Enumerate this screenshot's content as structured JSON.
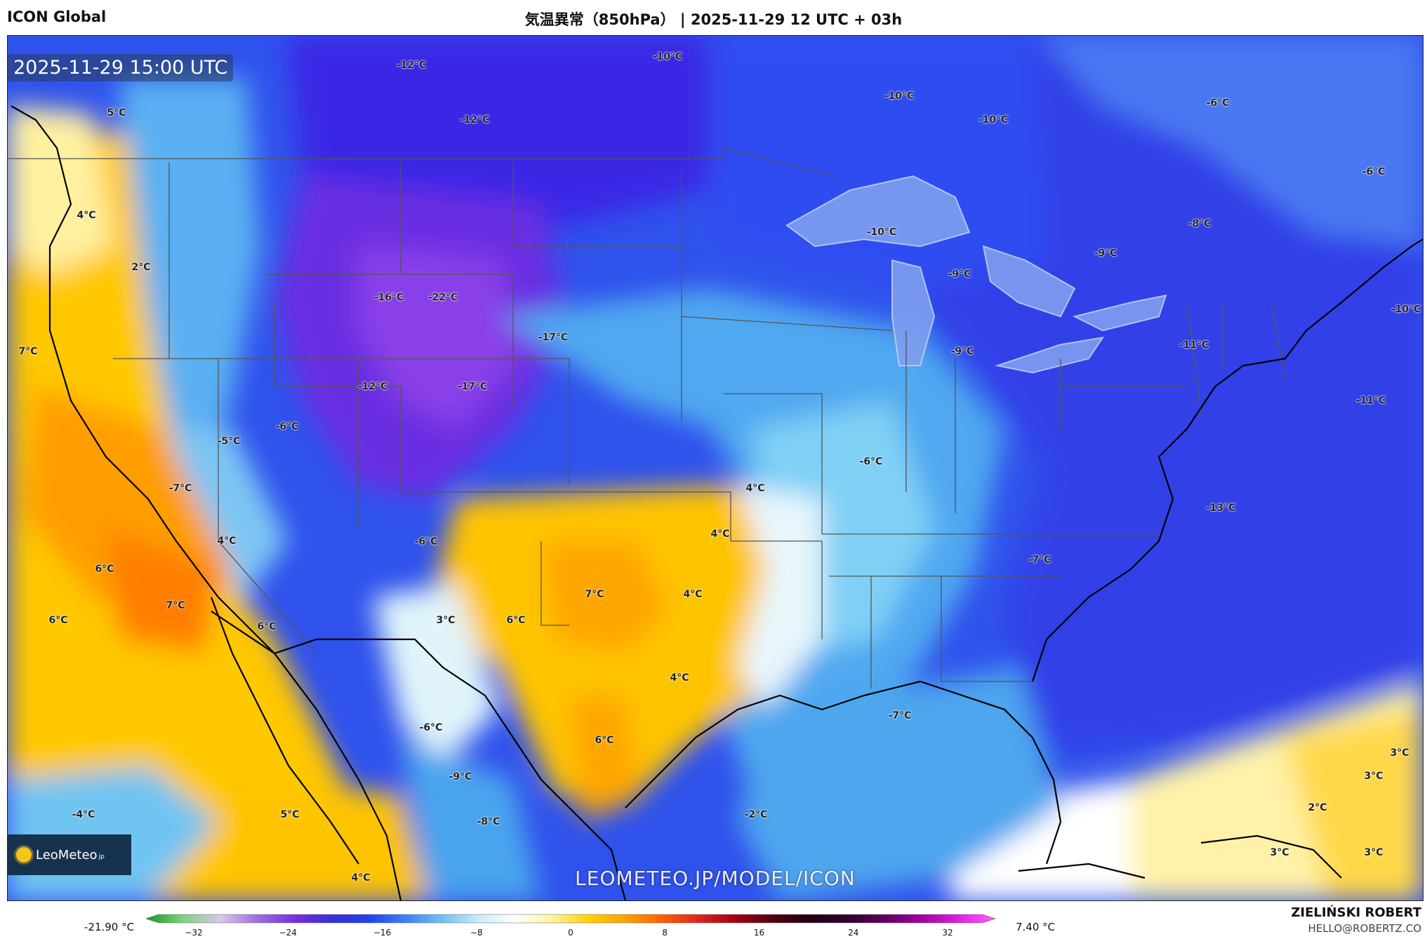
{
  "header": {
    "model": "ICON Global",
    "title": "気温異常（850hPa） | 2025-11-29 12 UTC + 03h"
  },
  "map": {
    "valid_time": "2025-11-29 15:00 UTC",
    "watermark": "LEOMETEO.JP/MODEL/ICON",
    "logo": {
      "name": "LeoMeteo",
      "suffix": "jp",
      "icon": "sun-icon"
    },
    "labels": [
      {
        "text": "-12°C"
      },
      {
        "text": "-12°C"
      },
      {
        "text": "-10°C"
      },
      {
        "text": "-10°C"
      },
      {
        "text": "-10°C"
      },
      {
        "text": "-6°C"
      },
      {
        "text": "-6°C"
      },
      {
        "text": "5°C"
      },
      {
        "text": "4°C"
      },
      {
        "text": "2°C"
      },
      {
        "text": "-10°C"
      },
      {
        "text": "-8°C"
      },
      {
        "text": "-9°C"
      },
      {
        "text": "-9°C"
      },
      {
        "text": "-9°C"
      },
      {
        "text": "-16°C"
      },
      {
        "text": "-22°C"
      },
      {
        "text": "-17°C"
      },
      {
        "text": "7°C"
      },
      {
        "text": "-11°C"
      },
      {
        "text": "-12°C"
      },
      {
        "text": "-17°C"
      },
      {
        "text": "-10°C"
      },
      {
        "text": "-11°C"
      },
      {
        "text": "-6°C"
      },
      {
        "text": "-5°C"
      },
      {
        "text": "-6°C"
      },
      {
        "text": "-7°C"
      },
      {
        "text": "4°C"
      },
      {
        "text": "-13°C"
      },
      {
        "text": "4°C"
      },
      {
        "text": "4°C"
      },
      {
        "text": "-6°C"
      },
      {
        "text": "-7°C"
      },
      {
        "text": "6°C"
      },
      {
        "text": "7°C"
      },
      {
        "text": "4°C"
      },
      {
        "text": "7°C"
      },
      {
        "text": "6°C"
      },
      {
        "text": "6°C"
      },
      {
        "text": "3°C"
      },
      {
        "text": "6°C"
      },
      {
        "text": "4°C"
      },
      {
        "text": "-7°C"
      },
      {
        "text": "-6°C"
      },
      {
        "text": "6°C"
      },
      {
        "text": "-9°C"
      },
      {
        "text": "3°C"
      },
      {
        "text": "3°C"
      },
      {
        "text": "-4°C"
      },
      {
        "text": "5°C"
      },
      {
        "text": "-8°C"
      },
      {
        "text": "-2°C"
      },
      {
        "text": "2°C"
      },
      {
        "text": "3°C"
      },
      {
        "text": "3°C"
      },
      {
        "text": "4°C"
      }
    ]
  },
  "colorbar": {
    "min_label": "-21.90 °C",
    "max_label": "7.40 °C",
    "ticks": [
      "−32",
      "−24",
      "−16",
      "−8",
      "0",
      "8",
      "16",
      "24",
      "32"
    ],
    "colors": [
      "#1a9a1a",
      "#7fd07f",
      "#d8c8ec",
      "#a070e0",
      "#7a2fe0",
      "#3a2fd8",
      "#2040f0",
      "#3a80f0",
      "#70c0f0",
      "#c8ecfa",
      "#ffffff",
      "#fff3a0",
      "#ffd000",
      "#ffa000",
      "#ff6000",
      "#e02020",
      "#a00010",
      "#500010",
      "#200010",
      "#300030",
      "#600060",
      "#a000a0",
      "#e020e0",
      "#ff60ff"
    ]
  },
  "footer": {
    "author": "ZIELIŃSKI ROBERT",
    "email": "HELLO@ROBERTZ.CO"
  }
}
